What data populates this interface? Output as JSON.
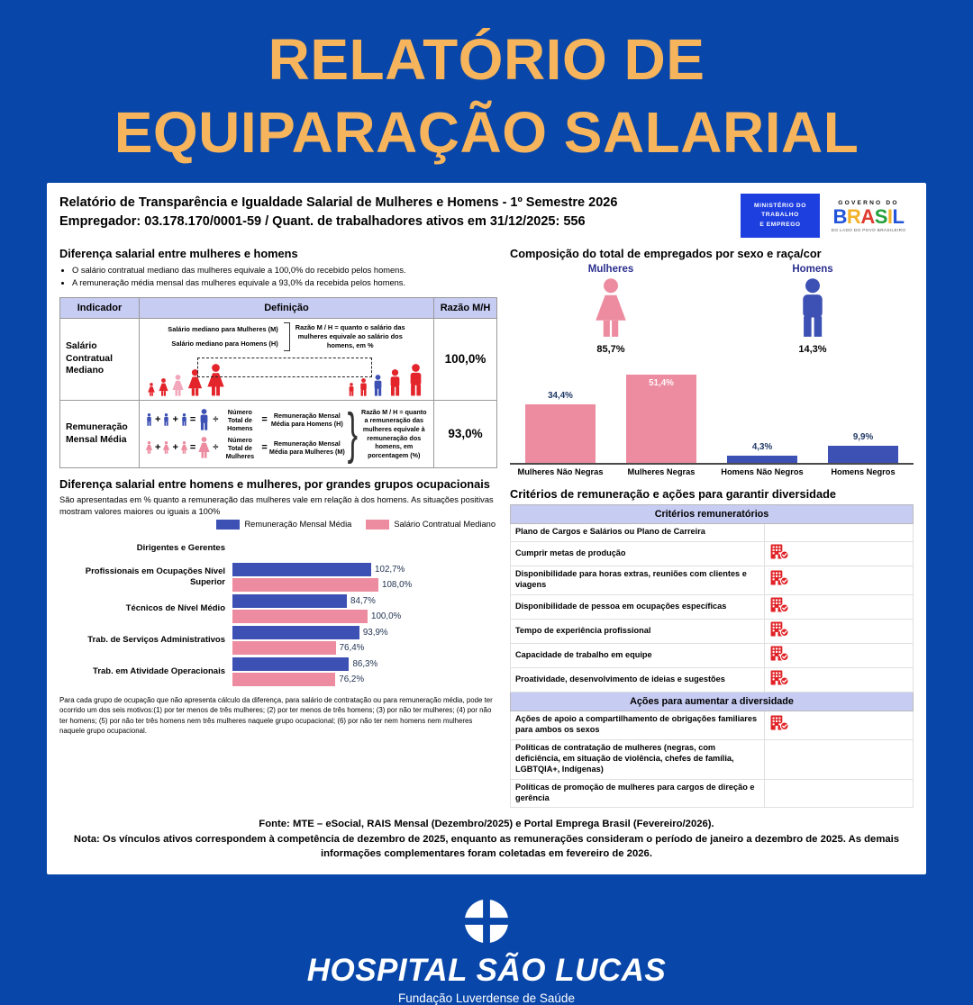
{
  "page": {
    "title_line1": "RELATÓRIO DE",
    "title_line2": "EQUIPARAÇÃO SALARIAL"
  },
  "report": {
    "header": {
      "line1": "Relatório de Transparência e Igualdade Salarial de Mulheres e Homens - 1º Semestre 2026",
      "line2": "Empregador: 03.178.170/0001-59 / Quant. de trabalhadores ativos em 31/12/2025: 556"
    },
    "logos": {
      "ministry_lines": [
        "MINISTÉRIO DO",
        "TRABALHO",
        "E EMPREGO"
      ],
      "gov_top": "GOVERNO DO",
      "gov_name": "BRASIL",
      "gov_letter_colors": [
        "#2355D8",
        "#F3B229",
        "#E03B2F",
        "#23A13C",
        "#F3B229",
        "#2355D8"
      ],
      "gov_bottom": "DO LADO DO POVO BRASILEIRO"
    },
    "left": {
      "section1_title": "Diferença salarial entre mulheres e homens",
      "bullets": [
        "O salário contratual mediano das mulheres equivale a 100,0% do recebido pelos homens.",
        "A remuneração média mensal das mulheres equivale a 93,0% da recebida pelos homens."
      ],
      "table": {
        "headers": [
          "Indicador",
          "Definição",
          "Razão M/H"
        ],
        "rows": [
          {
            "indicator": "Salário Contratual Mediano",
            "ratio": "100,0%",
            "def_label1": "Salário mediano para Mulheres (M)",
            "def_label2": "Salário mediano para Homens (H)",
            "def_note": "Razão M / H = quanto o salário das mulheres equivale ao salário dos homens, em %"
          },
          {
            "indicator": "Remuneração Mensal Média",
            "ratio": "93,0%",
            "formula_men": {
              "divide_label": "Número Total de Homens",
              "equals_label": "Remuneração Mensal Média para Homens (H)"
            },
            "formula_women": {
              "divide_label": "Número Total de Mulheres",
              "equals_label": "Remuneração Mensal Média para Mulheres (M)"
            },
            "def_note": "Razão M / H = quanto a remuneração das mulheres equivale à remuneração dos homens, em porcentagem (%)"
          }
        ]
      },
      "section2_title": "Diferença salarial entre homens e mulheres, por grandes grupos ocupacionais",
      "section2_subtitle": "São apresentadas em % quanto a remuneração das mulheres vale em relação à dos homens. As situações positivas mostram valores maiores ou iguais a 100%",
      "footnote": "Para cada grupo de ocupação que não apresenta cálculo da diferença, para salário de contratação ou para remuneração média, pode ter ocorrido um dos seis motivos:(1) por ter menos de três mulheres; (2) por ter menos de três homens; (3) por não ter mulheres; (4) por não ter homens; (5) por não ter três homens nem três mulheres naquele grupo ocupacional; (6) por não ter nem homens nem mulheres naquele grupo ocupacional."
    },
    "right": {
      "comp_title": "Composição do total de empregados por sexo e raça/cor",
      "pictograms": [
        {
          "label": "Mulheres",
          "value": "85,7%"
        },
        {
          "label": "Homens",
          "value": "14,3%"
        }
      ],
      "criteria_title": "Critérios de remuneração e ações para garantir diversidade",
      "criteria_table": {
        "group1_header": "Critérios remuneratórios",
        "group1_rows": [
          {
            "label": "Plano de Cargos e Salários ou Plano de Carreira",
            "checked": false
          },
          {
            "label": "Cumprir metas de produção",
            "checked": true
          },
          {
            "label": "Disponibilidade para horas extras, reuniões com clientes e viagens",
            "checked": true
          },
          {
            "label": "Disponibilidade de pessoa em ocupações específicas",
            "checked": true
          },
          {
            "label": "Tempo de experiência profissional",
            "checked": true
          },
          {
            "label": "Capacidade de trabalho em equipe",
            "checked": true
          },
          {
            "label": "Proatividade, desenvolvimento de ideias e sugestões",
            "checked": true
          }
        ],
        "group2_header": "Ações para aumentar a diversidade",
        "group2_rows": [
          {
            "label": "Ações de apoio a compartilhamento de obrigações familiares para ambos os sexos",
            "checked": true
          },
          {
            "label": "Políticas de contratação de mulheres (negras, com deficiência, em situação de violência, chefes de família, LGBTQIA+, Indígenas)",
            "checked": false
          },
          {
            "label": "Políticas de promoção de mulheres para cargos de direção e gerência",
            "checked": false
          }
        ]
      }
    },
    "footer": {
      "fonte": "Fonte: MTE – eSocial, RAIS Mensal (Dezembro/2025) e Portal Emprega Brasil (Fevereiro/2026).",
      "nota": "Nota: Os vínculos ativos correspondem à competência de dezembro de 2025, enquanto as remunerações consideram o período de janeiro a dezembro de 2025. As demais informações complementares foram coletadas em fevereiro de 2026."
    }
  },
  "brand": {
    "hospital_name": "HOSPITAL SÃO LUCAS",
    "hospital_subtitle": "Fundação Luverdense de Saúde"
  },
  "colors": {
    "page_blue": "#0846A9",
    "title_yellow": "#F6B45C",
    "table_header_lavender": "#C7CCF2",
    "bar_pink": "#ED8CA0",
    "bar_blue": "#3D50B4",
    "figure_red": "#E3242B",
    "figure_light_pink": "#F2A7BC",
    "navy_label": "#2B2F8E",
    "criteria_icon_red": "#E02024",
    "ministry_blue": "#1E3FE0"
  },
  "chart_data": [
    {
      "type": "bar",
      "title": "Composição do total de empregados por sexo e raça/cor",
      "categories": [
        "Mulheres Não Negras",
        "Mulheres Negras",
        "Homens Não Negros",
        "Homens Negros"
      ],
      "values": [
        34.4,
        51.4,
        4.3,
        9.9
      ],
      "value_labels": [
        "34,4%",
        "51,4%",
        "4,3%",
        "9,9%"
      ],
      "bar_colors": [
        "#ED8CA0",
        "#ED8CA0",
        "#3D50B4",
        "#3D50B4"
      ],
      "xlabel": "",
      "ylabel": "",
      "ylim": [
        0,
        55
      ],
      "grid": false,
      "legend": "none"
    },
    {
      "type": "bar-horizontal",
      "title": "Diferença salarial entre homens e mulheres, por grandes grupos ocupacionais",
      "categories": [
        "Dirigentes e Gerentes",
        "Profissionais em Ocupações Nível Superior",
        "Técnicos de Nível Médio",
        "Trab. de Serviços Administrativos",
        "Trab. em Atividade Operacionais"
      ],
      "series": [
        {
          "name": "Remuneração Mensal Média",
          "color": "#3D50B4",
          "values": [
            null,
            102.7,
            84.7,
            93.9,
            86.3
          ],
          "value_labels": [
            "",
            "102,7%",
            "84,7%",
            "93,9%",
            "86,3%"
          ]
        },
        {
          "name": "Salário Contratual Mediano",
          "color": "#ED8CA0",
          "values": [
            null,
            108.0,
            100.0,
            76.4,
            76.2
          ],
          "value_labels": [
            "",
            "108,0%",
            "100,0%",
            "76,4%",
            "76,2%"
          ]
        }
      ],
      "xlim": [
        0,
        115
      ],
      "grid": false,
      "legend_position": "top-right"
    }
  ]
}
